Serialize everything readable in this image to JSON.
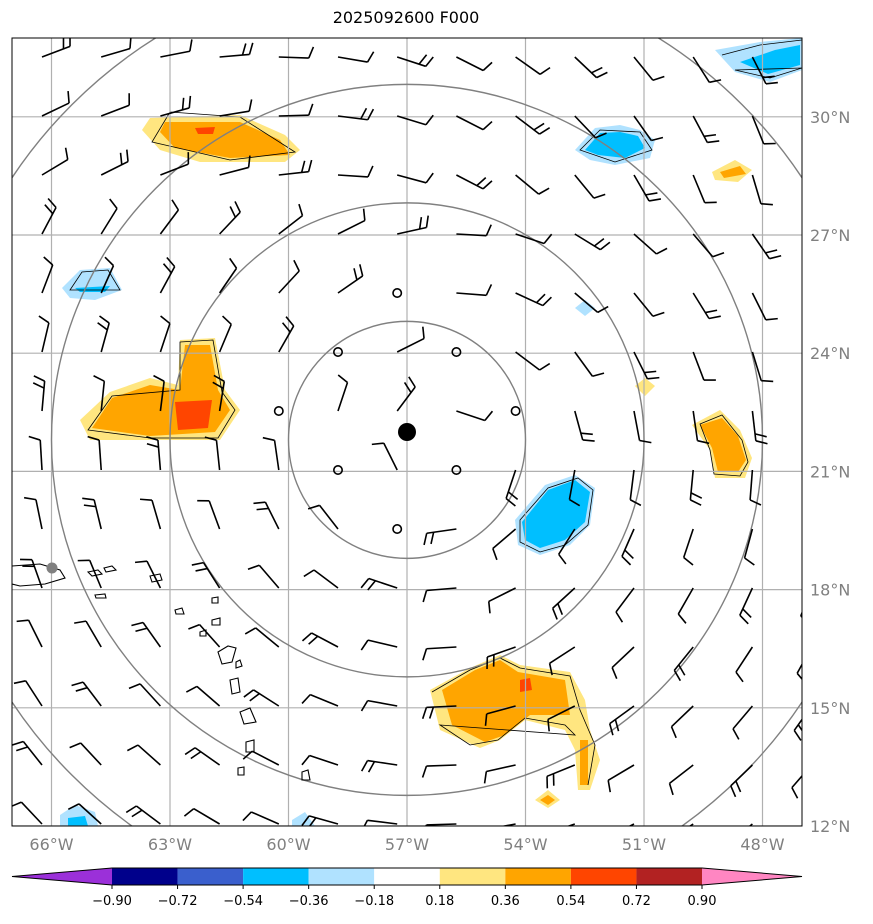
{
  "title": "2025092600 F000",
  "map": {
    "lon_range": [
      -67.0,
      -47.0
    ],
    "lat_range": [
      12.0,
      32.0
    ],
    "center": {
      "lon": -57.0,
      "lat": 21.8
    },
    "range_ring_radius_deg": [
      3,
      6,
      9,
      12
    ],
    "lon_ticks": [
      {
        "value": -66,
        "label": "66°W"
      },
      {
        "value": -63,
        "label": "63°W"
      },
      {
        "value": -60,
        "label": "60°W"
      },
      {
        "value": -57,
        "label": "57°W"
      },
      {
        "value": -54,
        "label": "54°W"
      },
      {
        "value": -51,
        "label": "51°W"
      },
      {
        "value": -48,
        "label": "48°W"
      }
    ],
    "lat_ticks": [
      {
        "value": 30,
        "label": "30°N"
      },
      {
        "value": 27,
        "label": "27°N"
      },
      {
        "value": 24,
        "label": "24°N"
      },
      {
        "value": 21,
        "label": "21°N"
      },
      {
        "value": 18,
        "label": "18°N"
      },
      {
        "value": 15,
        "label": "15°N"
      },
      {
        "value": 12,
        "label": "12°N"
      }
    ],
    "gridlines": true,
    "colors": {
      "grid": "#b0b0b0",
      "rings": "#808080",
      "barbs": "#000000",
      "tick_labels": "#808080"
    }
  },
  "colorbar": {
    "ticks": [
      "−0.90",
      "−0.72",
      "−0.54",
      "−0.36",
      "−0.18",
      "0.18",
      "0.36",
      "0.54",
      "0.72",
      "0.90"
    ],
    "colors": [
      "#9b30d9",
      "#00008b",
      "#3a5fcd",
      "#00bfff",
      "#b0e2ff",
      "#ffffff",
      "#ffe680",
      "#ffa500",
      "#ff4500",
      "#b22222",
      "#ff86c2"
    ]
  },
  "chart_data": {
    "type": "map",
    "field": "shaded anomaly with wind barbs",
    "positive_anomaly_regions": [
      {
        "lon": -61.5,
        "lat": 29.3,
        "max": 0.54
      },
      {
        "lon": -61.2,
        "lat": 22.7,
        "max": 0.54
      },
      {
        "lon": -54.0,
        "lat": 15.1,
        "max": 0.54
      },
      {
        "lon": -53.0,
        "lat": 13.8,
        "max": 0.36
      },
      {
        "lon": -48.9,
        "lat": 21.5,
        "max": 0.36
      },
      {
        "lon": -47.9,
        "lat": 28.2,
        "max": 0.36
      }
    ],
    "negative_anomaly_regions": [
      {
        "lon": -52.5,
        "lat": 29.2,
        "min": -0.36
      },
      {
        "lon": -47.5,
        "lat": 31.2,
        "min": -0.36
      },
      {
        "lon": -53.5,
        "lat": 19.7,
        "min": -0.36
      },
      {
        "lon": -65.0,
        "lat": 25.8,
        "min": -0.36
      }
    ]
  }
}
